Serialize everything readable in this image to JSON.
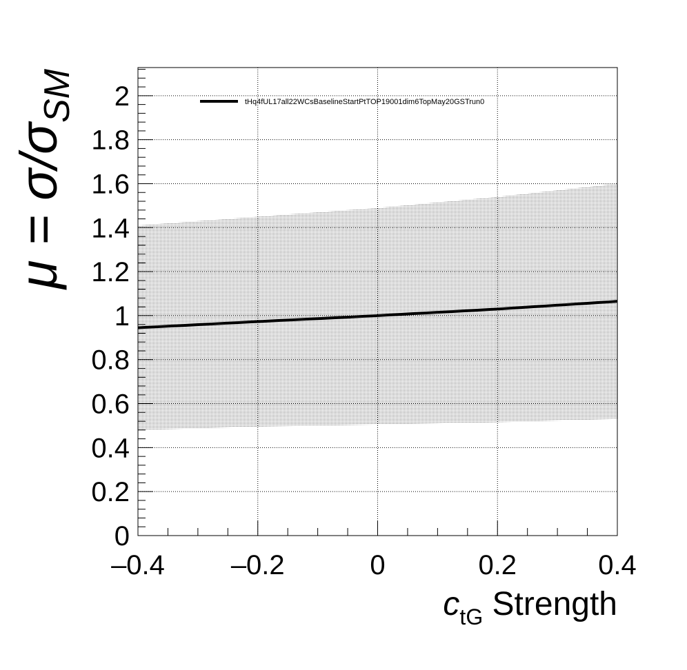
{
  "chart_data": {
    "type": "line",
    "title": "",
    "xlabel": {
      "symbol": "c",
      "subscript": "tG",
      "suffix": " Strength"
    },
    "ylabel": {
      "prefix": "μ = σ/σ",
      "subscript": "SM"
    },
    "xlim": [
      -0.4,
      0.4
    ],
    "ylim": [
      0,
      2.1
    ],
    "xticks": [
      -0.4,
      -0.2,
      0,
      0.2,
      0.4
    ],
    "xtick_labels": [
      "–0.4",
      "–0.2",
      "0",
      "0.2",
      "0.4"
    ],
    "yticks": [
      0,
      0.2,
      0.4,
      0.6,
      0.8,
      1,
      1.2,
      1.4,
      1.6,
      1.8,
      2
    ],
    "ytick_labels": [
      "0",
      "0.2",
      "0.4",
      "0.6",
      "0.8",
      "1",
      "1.2",
      "1.4",
      "1.6",
      "1.8",
      "2"
    ],
    "grid": true,
    "legend_position": "top",
    "series": [
      {
        "name": "tHq4fUL17all22WCsBaselineStartPtTOP19001dim6TopMay20GSTrun0",
        "color": "#000000",
        "x": [
          -0.4,
          -0.2,
          0,
          0.2,
          0.4
        ],
        "y": [
          0.945,
          0.973,
          1.0,
          1.03,
          1.065
        ]
      }
    ],
    "uncertainty_band": {
      "x": [
        -0.4,
        -0.2,
        0,
        0.2,
        0.4
      ],
      "lower": [
        0.48,
        0.495,
        0.505,
        0.515,
        0.53
      ],
      "upper": [
        1.41,
        1.45,
        1.49,
        1.54,
        1.6
      ],
      "color": "#000000"
    }
  }
}
